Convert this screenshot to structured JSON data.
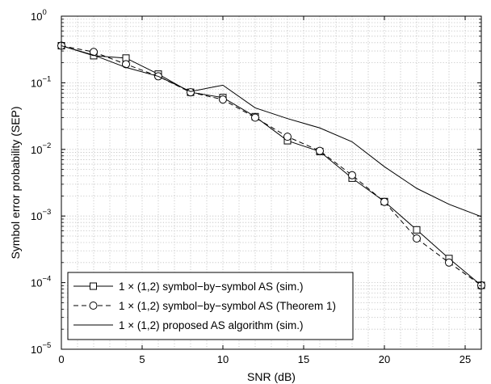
{
  "chart_data": {
    "type": "line",
    "title": "",
    "xlabel": "SNR (dB)",
    "ylabel": "Symbol error probability (SEP)",
    "xlim": [
      0,
      26
    ],
    "ylim": [
      1e-05,
      1
    ],
    "y_scale": "log",
    "grid": true,
    "legend_position": "bottom-left",
    "x_ticks": [
      0,
      5,
      10,
      15,
      20,
      25
    ],
    "x_tick_labels": [
      "0",
      "5",
      "10",
      "15",
      "20",
      "25"
    ],
    "y_ticks": [
      1e-05,
      0.0001,
      0.001,
      0.01,
      0.1,
      1
    ],
    "y_tick_labels": [
      {
        "base": "10",
        "exp": "−5"
      },
      {
        "base": "10",
        "exp": "−4"
      },
      {
        "base": "10",
        "exp": "−3"
      },
      {
        "base": "10",
        "exp": "−2"
      },
      {
        "base": "10",
        "exp": "−1"
      },
      {
        "base": "10",
        "exp": "0"
      }
    ],
    "series": [
      {
        "name": "1 × (1,2) symbol−by−symbol AS (sim.)",
        "line_style": "solid",
        "marker": "square",
        "x": [
          0,
          2,
          4,
          6,
          8,
          10,
          12,
          14,
          16,
          18,
          20,
          22,
          24,
          26
        ],
        "y": [
          0.36,
          0.255,
          0.235,
          0.135,
          0.072,
          0.06,
          0.031,
          0.0135,
          0.0093,
          0.0037,
          0.00165,
          0.00062,
          0.00023,
          9.1e-05
        ]
      },
      {
        "name": "1 × (1,2) symbol−by−symbol AS (Theorem 1)",
        "line_style": "dashed",
        "marker": "circle",
        "x": [
          0,
          2,
          4,
          6,
          8,
          10,
          12,
          14,
          16,
          18,
          20,
          22,
          24,
          26
        ],
        "y": [
          0.36,
          0.29,
          0.19,
          0.125,
          0.072,
          0.056,
          0.03,
          0.0155,
          0.0095,
          0.0041,
          0.00163,
          0.00046,
          0.0002,
          9.1e-05
        ]
      },
      {
        "name": "1 × (1,2) proposed AS algorithm (sim.)",
        "line_style": "solid",
        "marker": "none",
        "x": [
          0,
          2,
          4,
          6,
          8,
          10,
          12,
          14,
          16,
          18,
          20,
          22,
          24,
          26
        ],
        "y": [
          0.36,
          0.26,
          0.17,
          0.125,
          0.074,
          0.092,
          0.042,
          0.029,
          0.021,
          0.013,
          0.0055,
          0.0026,
          0.0015,
          0.00098
        ]
      }
    ],
    "colors": {
      "line": "#000000",
      "grid": "#bdbdbd",
      "background": "#ffffff"
    }
  }
}
